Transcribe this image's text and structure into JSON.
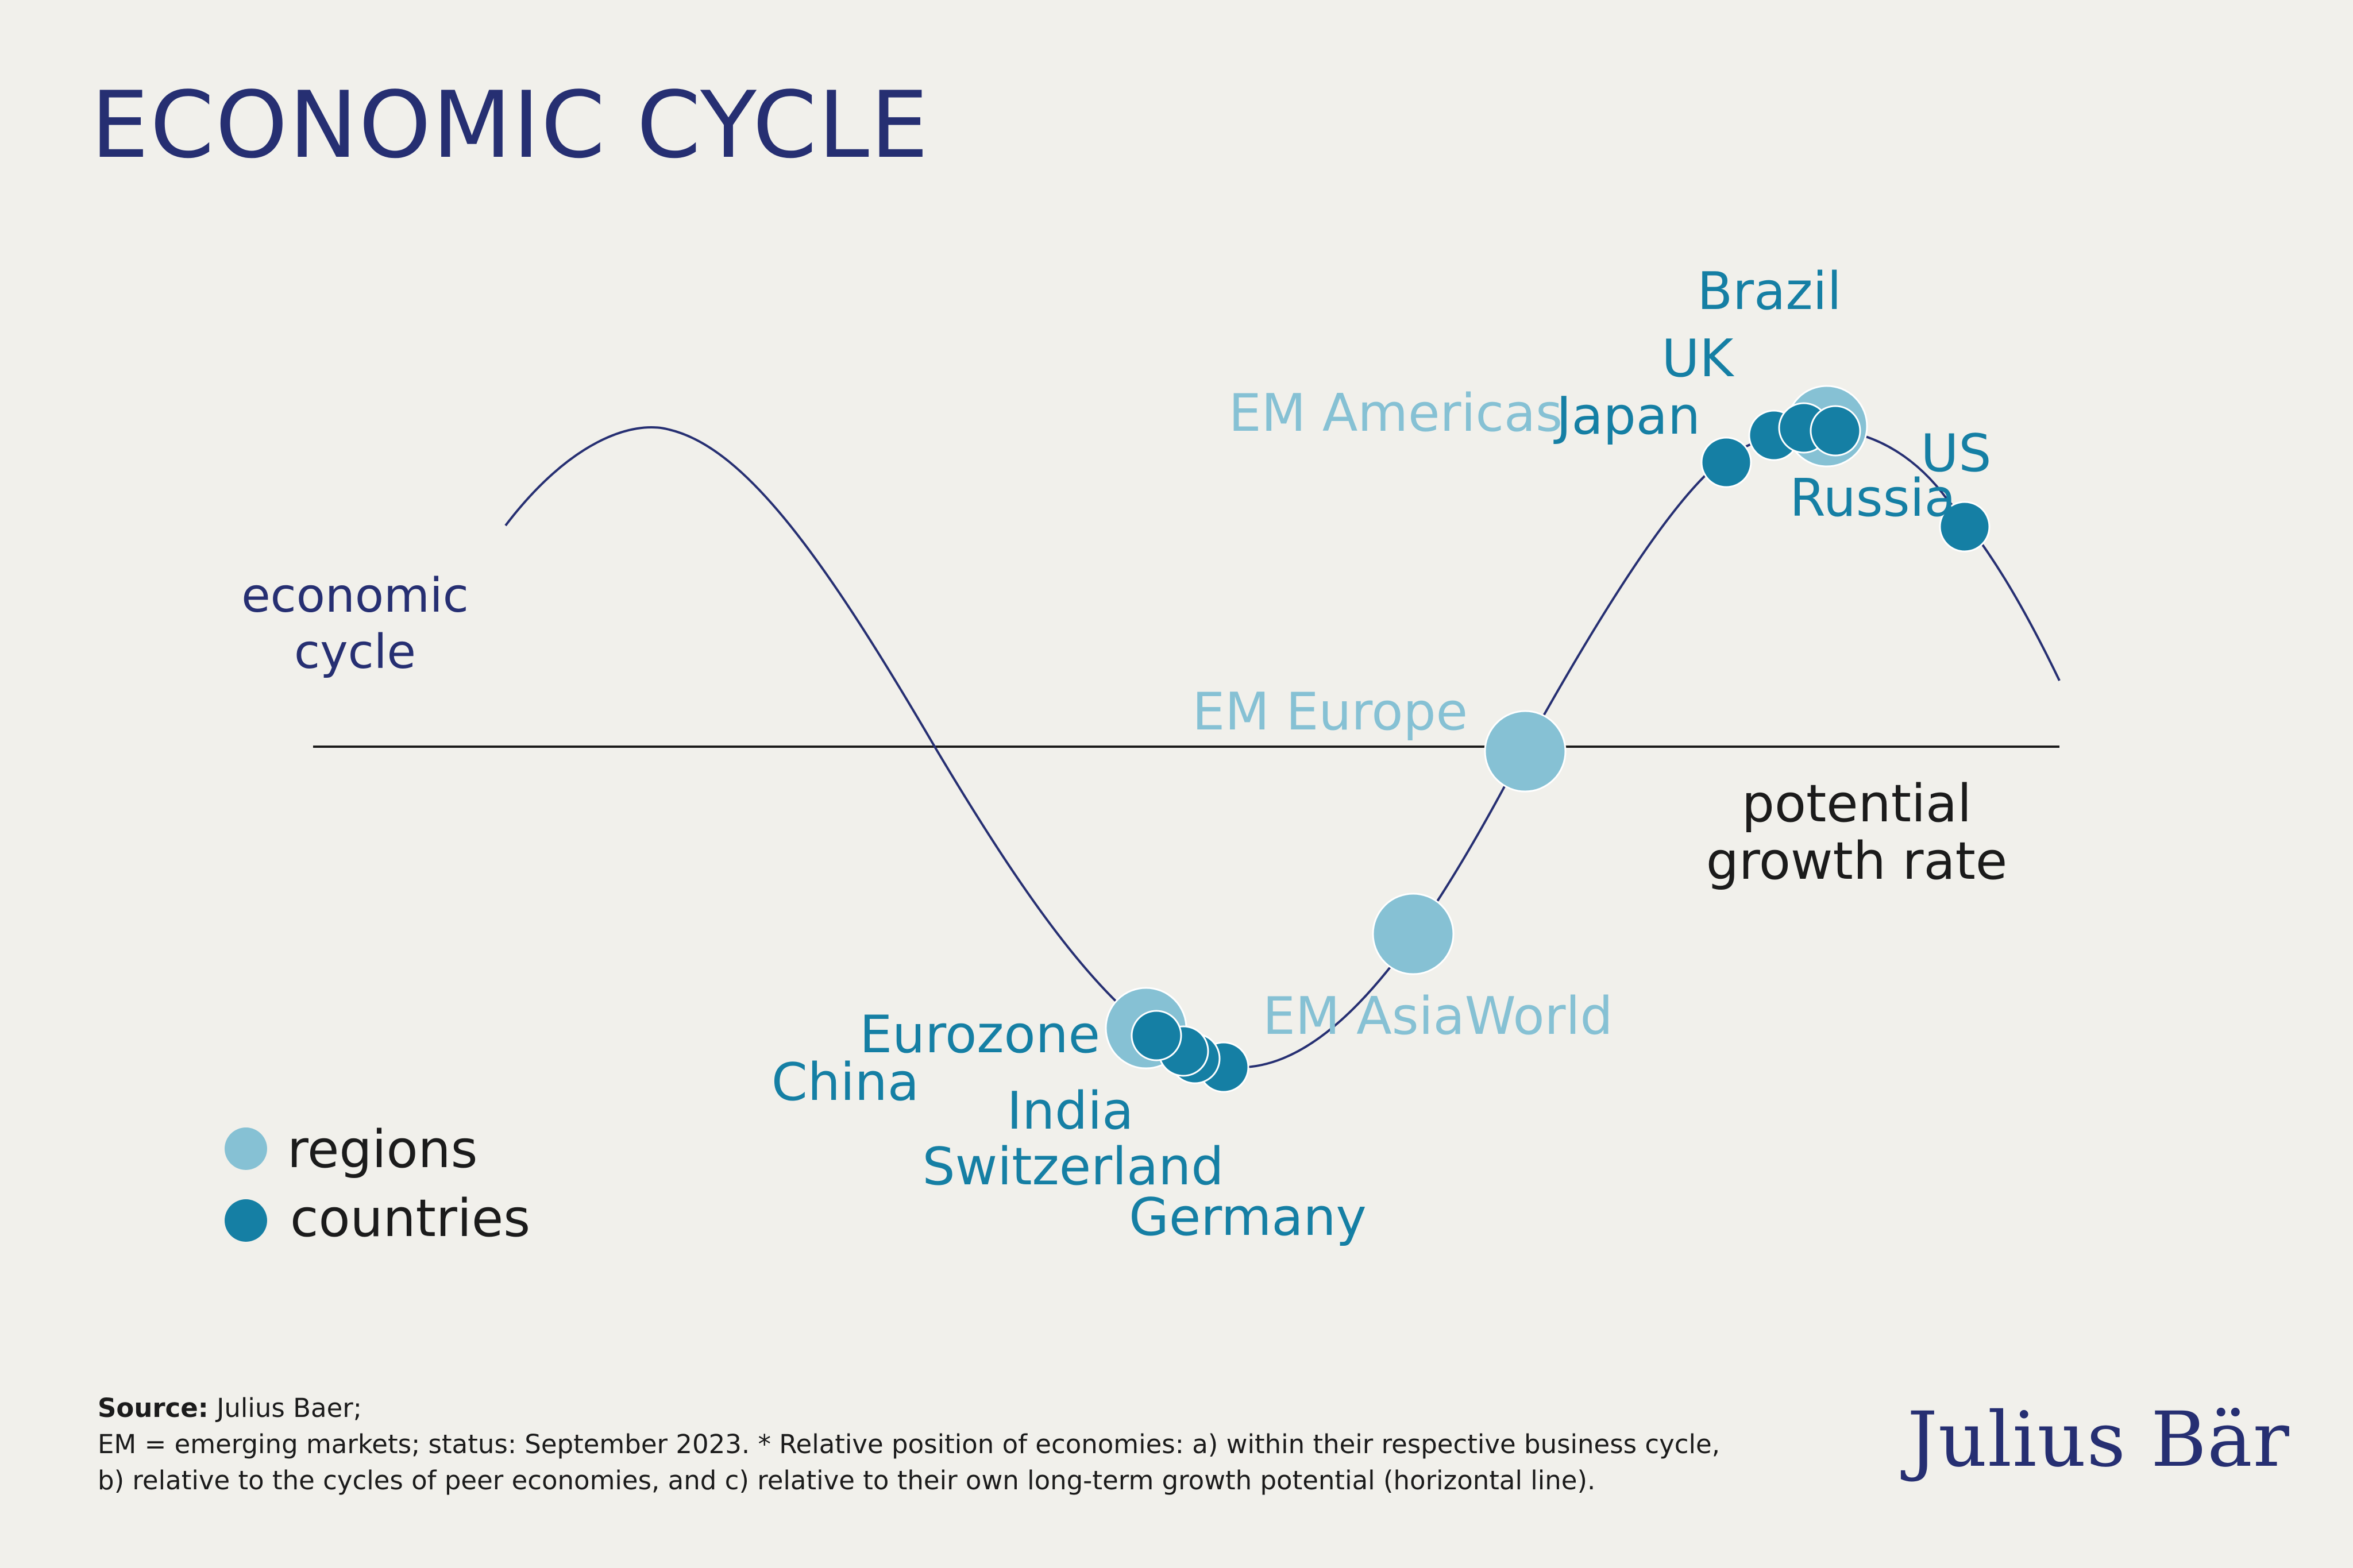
{
  "title": "ECONOMIC CYCLE",
  "axis": {
    "y_label_line1": "economic",
    "y_label_line2": "cycle",
    "baseline_label_line1": "potential",
    "baseline_label_line2": "growth rate"
  },
  "legend": {
    "regions": "regions",
    "countries": "countries"
  },
  "regions": [
    {
      "name": "EM Americas"
    },
    {
      "name": "EM Europe"
    },
    {
      "name": "EM AsiaWorld"
    },
    {
      "name": "Eurozone"
    }
  ],
  "countries": [
    {
      "name": "Brazil"
    },
    {
      "name": "UK"
    },
    {
      "name": "Japan"
    },
    {
      "name": "US"
    },
    {
      "name": "Russia"
    },
    {
      "name": "China"
    },
    {
      "name": "India"
    },
    {
      "name": "Switzerland"
    },
    {
      "name": "Germany"
    }
  ],
  "footer": {
    "source_label": "Source:",
    "source_text": "Julius Baer;",
    "line2": "EM = emerging markets; status: September 2023. * Relative position of economies: a) within their respective business cycle,",
    "line3": "b) relative to the cycles of peer economies, and c) relative to their own long-term growth potential (horizontal line)."
  },
  "brand": "Julius Bär",
  "colors": {
    "background": "#f1f0eb",
    "title": "#262f72",
    "region": "#86c1d4",
    "country": "#157fa4",
    "curve": "#262f72",
    "baseline": "#1b1b1b"
  }
}
